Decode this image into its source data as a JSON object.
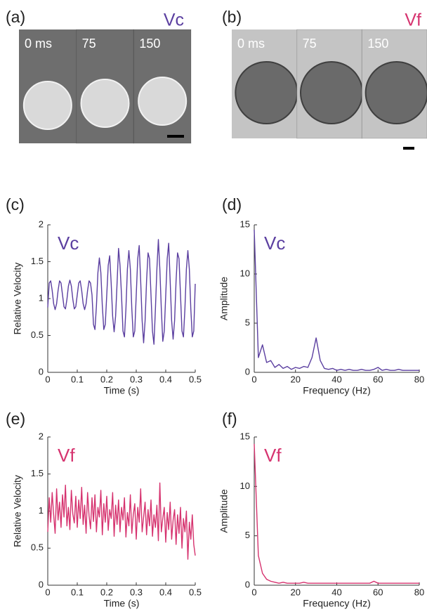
{
  "images": [
    {
      "panel": "(a)",
      "label": "Vc",
      "color": "#5b3fa0",
      "frames": [
        "0 ms",
        "75",
        "150"
      ]
    },
    {
      "panel": "(b)",
      "label": "Vf",
      "color": "#d6336f",
      "frames": [
        "0 ms",
        "75",
        "150"
      ]
    }
  ],
  "chart_data": [
    {
      "type": "line",
      "panel": "(c)",
      "xlabel": "Time (s)",
      "ylabel": "Relative Velocity",
      "xlim": [
        0,
        0.5
      ],
      "xticks": [
        0,
        0.1,
        0.2,
        0.3,
        0.4,
        0.5
      ],
      "ylim": [
        0,
        2
      ],
      "yticks": [
        0,
        0.5,
        1,
        1.5,
        2
      ],
      "x": [
        0,
        0.005,
        0.01,
        0.015,
        0.02,
        0.025,
        0.03,
        0.035,
        0.04,
        0.045,
        0.05,
        0.055,
        0.06,
        0.065,
        0.07,
        0.075,
        0.08,
        0.085,
        0.09,
        0.095,
        0.1,
        0.105,
        0.11,
        0.115,
        0.12,
        0.125,
        0.13,
        0.135,
        0.14,
        0.145,
        0.15,
        0.155,
        0.16,
        0.165,
        0.17,
        0.175,
        0.18,
        0.185,
        0.19,
        0.195,
        0.2,
        0.205,
        0.21,
        0.215,
        0.22,
        0.225,
        0.23,
        0.235,
        0.24,
        0.245,
        0.25,
        0.255,
        0.26,
        0.265,
        0.27,
        0.275,
        0.28,
        0.285,
        0.29,
        0.295,
        0.3,
        0.305,
        0.31,
        0.315,
        0.32,
        0.325,
        0.33,
        0.335,
        0.34,
        0.345,
        0.35,
        0.355,
        0.36,
        0.365,
        0.37,
        0.375,
        0.38,
        0.385,
        0.39,
        0.395,
        0.4,
        0.405,
        0.41,
        0.415,
        0.42,
        0.425,
        0.43,
        0.435,
        0.44,
        0.445,
        0.45,
        0.455,
        0.46,
        0.465,
        0.47,
        0.475,
        0.48,
        0.485,
        0.49,
        0.495,
        0.5
      ],
      "series": [
        {
          "name": "Vc",
          "color": "#5b3fa0",
          "values": [
            0.88,
            1.21,
            1.24,
            1.11,
            0.93,
            0.85,
            0.93,
            1.11,
            1.24,
            1.21,
            1.05,
            0.89,
            0.86,
            0.99,
            1.17,
            1.25,
            1.17,
            0.99,
            0.86,
            0.89,
            1.05,
            1.21,
            1.24,
            1.11,
            0.93,
            0.85,
            0.93,
            1.11,
            1.24,
            1.21,
            1.05,
            0.65,
            0.58,
            0.9,
            1.35,
            1.55,
            1.35,
            0.9,
            0.58,
            0.65,
            1.05,
            1.45,
            1.58,
            1.21,
            0.76,
            0.55,
            0.76,
            1.21,
            1.68,
            1.45,
            1.05,
            0.56,
            0.48,
            0.86,
            1.4,
            1.65,
            1.4,
            0.86,
            0.48,
            0.56,
            1.05,
            1.54,
            1.72,
            1.24,
            0.7,
            0.4,
            0.7,
            1.24,
            1.62,
            1.54,
            1.05,
            0.56,
            0.38,
            0.86,
            1.4,
            1.8,
            1.4,
            0.86,
            0.42,
            0.56,
            1.05,
            1.54,
            1.75,
            1.24,
            0.7,
            0.45,
            0.7,
            1.24,
            1.62,
            1.54,
            1.05,
            0.56,
            0.48,
            0.86,
            1.4,
            1.65,
            1.4,
            0.86,
            0.48,
            0.56,
            1.2
          ]
        }
      ]
    },
    {
      "type": "line",
      "panel": "(d)",
      "xlabel": "Frequency (Hz)",
      "ylabel": "Amplitude",
      "xlim": [
        0,
        80
      ],
      "xticks": [
        0,
        20,
        40,
        60,
        80
      ],
      "ylim": [
        0,
        15
      ],
      "yticks": [
        0,
        5,
        10,
        15
      ],
      "x": [
        0,
        2,
        4,
        6,
        8,
        10,
        12,
        14,
        16,
        18,
        20,
        22,
        24,
        26,
        28,
        30,
        32,
        34,
        36,
        38,
        40,
        42,
        44,
        46,
        48,
        50,
        52,
        54,
        56,
        58,
        60,
        62,
        64,
        66,
        68,
        70,
        72,
        74,
        76,
        78,
        80
      ],
      "series": [
        {
          "name": "Vc",
          "color": "#5b3fa0",
          "values": [
            14.5,
            1.5,
            2.8,
            1.0,
            1.2,
            0.5,
            0.8,
            0.4,
            0.6,
            0.3,
            0.5,
            0.4,
            0.6,
            0.5,
            1.5,
            3.5,
            1.2,
            0.4,
            0.3,
            0.4,
            0.2,
            0.3,
            0.2,
            0.3,
            0.2,
            0.2,
            0.3,
            0.2,
            0.2,
            0.3,
            0.5,
            0.2,
            0.3,
            0.2,
            0.2,
            0.3,
            0.2,
            0.2,
            0.2,
            0.2,
            0.2
          ]
        }
      ]
    },
    {
      "type": "line",
      "panel": "(e)",
      "xlabel": "Time (s)",
      "ylabel": "Relative Velocity",
      "xlim": [
        0,
        0.5
      ],
      "xticks": [
        0,
        0.1,
        0.2,
        0.3,
        0.4,
        0.5
      ],
      "ylim": [
        0,
        2
      ],
      "yticks": [
        0,
        0.5,
        1,
        1.5,
        2
      ],
      "x": [
        0,
        0.005,
        0.01,
        0.015,
        0.02,
        0.025,
        0.03,
        0.035,
        0.04,
        0.045,
        0.05,
        0.055,
        0.06,
        0.065,
        0.07,
        0.075,
        0.08,
        0.085,
        0.09,
        0.095,
        0.1,
        0.105,
        0.11,
        0.115,
        0.12,
        0.125,
        0.13,
        0.135,
        0.14,
        0.145,
        0.15,
        0.155,
        0.16,
        0.165,
        0.17,
        0.175,
        0.18,
        0.185,
        0.19,
        0.195,
        0.2,
        0.205,
        0.21,
        0.215,
        0.22,
        0.225,
        0.23,
        0.235,
        0.24,
        0.245,
        0.25,
        0.255,
        0.26,
        0.265,
        0.27,
        0.275,
        0.28,
        0.285,
        0.29,
        0.295,
        0.3,
        0.305,
        0.31,
        0.315,
        0.32,
        0.325,
        0.33,
        0.335,
        0.34,
        0.345,
        0.35,
        0.355,
        0.36,
        0.365,
        0.37,
        0.375,
        0.38,
        0.385,
        0.39,
        0.395,
        0.4,
        0.405,
        0.41,
        0.415,
        0.42,
        0.425,
        0.43,
        0.435,
        0.44,
        0.445,
        0.45,
        0.455,
        0.46,
        0.465,
        0.47,
        0.475,
        0.48,
        0.485,
        0.49,
        0.495,
        0.5
      ],
      "series": [
        {
          "name": "Vf",
          "color": "#d6336f",
          "values": [
            0.72,
            1.18,
            0.85,
            1.25,
            0.95,
            0.7,
            1.3,
            0.88,
            1.12,
            0.78,
            1.22,
            0.92,
            1.35,
            0.8,
            1.05,
            0.75,
            1.28,
            0.96,
            0.84,
            1.2,
            0.78,
            1.15,
            0.9,
            1.32,
            0.82,
            1.08,
            0.7,
            1.25,
            0.94,
            0.76,
            1.18,
            0.86,
            1.22,
            0.72,
            1.05,
            0.92,
            1.28,
            0.68,
            1.1,
            0.85,
            1.2,
            0.74,
            1.02,
            0.9,
            1.25,
            0.66,
            1.08,
            0.82,
            1.15,
            0.72,
            1.05,
            0.88,
            1.18,
            0.65,
            0.98,
            0.8,
            1.22,
            0.7,
            0.95,
            1.1,
            0.62,
            1.05,
            0.85,
            1.3,
            0.72,
            0.92,
            1.12,
            0.68,
            1.02,
            0.8,
            1.15,
            0.66,
            0.95,
            0.78,
            1.08,
            0.6,
            1.38,
            0.72,
            0.9,
            1.05,
            0.58,
            0.98,
            0.75,
            1.12,
            0.62,
            0.88,
            1.02,
            0.55,
            0.95,
            0.7,
            1.05,
            0.5,
            0.9,
            0.72,
            1.0,
            0.35,
            0.85,
            0.62,
            0.95,
            0.55,
            0.4
          ]
        }
      ]
    },
    {
      "type": "line",
      "panel": "(f)",
      "xlabel": "Frequency (Hz)",
      "ylabel": "Amplitude",
      "xlim": [
        0,
        80
      ],
      "xticks": [
        0,
        20,
        40,
        60,
        80
      ],
      "ylim": [
        0,
        15
      ],
      "yticks": [
        0,
        5,
        10,
        15
      ],
      "x": [
        0,
        2,
        4,
        6,
        8,
        10,
        12,
        14,
        16,
        18,
        20,
        22,
        24,
        26,
        28,
        30,
        32,
        34,
        36,
        38,
        40,
        42,
        44,
        46,
        48,
        50,
        52,
        54,
        56,
        58,
        60,
        62,
        64,
        66,
        68,
        70,
        72,
        74,
        76,
        78,
        80
      ],
      "series": [
        {
          "name": "Vf",
          "color": "#d6336f",
          "values": [
            14.3,
            3.0,
            1.2,
            0.6,
            0.4,
            0.3,
            0.2,
            0.3,
            0.2,
            0.2,
            0.2,
            0.2,
            0.3,
            0.2,
            0.2,
            0.2,
            0.2,
            0.2,
            0.2,
            0.2,
            0.2,
            0.2,
            0.2,
            0.2,
            0.2,
            0.2,
            0.2,
            0.2,
            0.2,
            0.4,
            0.2,
            0.2,
            0.2,
            0.2,
            0.2,
            0.2,
            0.2,
            0.2,
            0.2,
            0.2,
            0.2
          ]
        }
      ]
    }
  ]
}
